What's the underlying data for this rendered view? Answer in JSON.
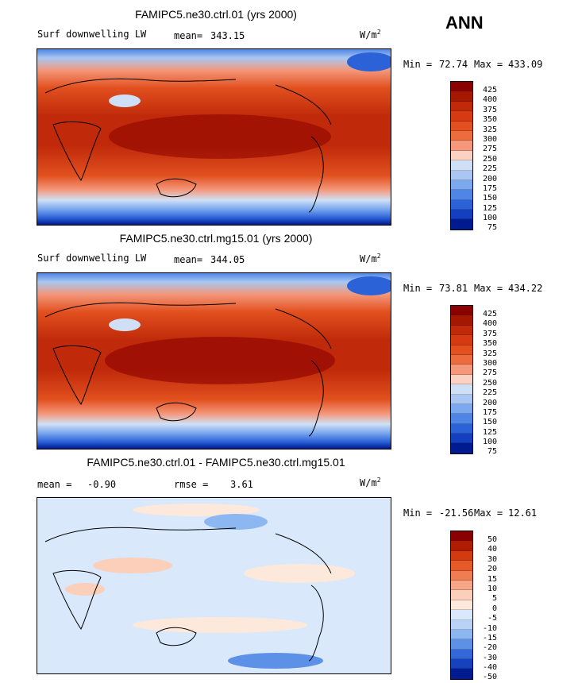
{
  "season": "ANN",
  "units_base": "W/m",
  "units_exp": "2",
  "panels": [
    {
      "title": "FAMIPC5.ne30.ctrl.01 (yrs 2000)",
      "variable": "Surf downwelling LW",
      "stat_label": "mean=",
      "stat_value": "343.15",
      "min_label": "Min =",
      "min_value": "72.74",
      "max_label": "Max =",
      "max_value": "433.09",
      "levels": [
        "425",
        "400",
        "375",
        "350",
        "325",
        "300",
        "275",
        "250",
        "225",
        "200",
        "175",
        "150",
        "125",
        "100",
        "75"
      ]
    },
    {
      "title": "FAMIPC5.ne30.ctrl.mg15.01 (yrs 2000)",
      "variable": "Surf downwelling LW",
      "stat_label": "mean=",
      "stat_value": "344.05",
      "min_label": "Min =",
      "min_value": "73.81",
      "max_label": "Max =",
      "max_value": "434.22",
      "levels": [
        "425",
        "400",
        "375",
        "350",
        "325",
        "300",
        "275",
        "250",
        "225",
        "200",
        "175",
        "150",
        "125",
        "100",
        "75"
      ]
    },
    {
      "title": "FAMIPC5.ne30.ctrl.01 - FAMIPC5.ne30.ctrl.mg15.01",
      "mean_label": "mean =",
      "mean_value": "-0.90",
      "rmse_label": "rmse =",
      "rmse_value": "3.61",
      "min_label": "Min =",
      "min_value": "-21.56",
      "max_label": "Max =",
      "max_value": "12.61",
      "levels": [
        "50",
        "40",
        "30",
        "20",
        "15",
        "10",
        "5",
        "0",
        "-5",
        "-10",
        "-15",
        "-20",
        "-30",
        "-40",
        "-50"
      ]
    }
  ],
  "colors": {
    "abs_scale": [
      "#8b0000",
      "#a51800",
      "#c02a0a",
      "#d63a12",
      "#e2501f",
      "#ec6c3e",
      "#f4977a",
      "#fbd2c2",
      "#cfe0f6",
      "#a9c7f2",
      "#7ba8ee",
      "#4f86e6",
      "#2c62d8",
      "#1440c0",
      "#001a8f"
    ],
    "diff_scale": [
      "#8b0000",
      "#b01c00",
      "#d23a10",
      "#e65a2a",
      "#ef7d51",
      "#f6a687",
      "#fbcfb9",
      "#fde9dc",
      "#d9e8fa",
      "#b8d3f6",
      "#8db7f1",
      "#5d91e8",
      "#3468d8",
      "#1642bd",
      "#001a8f"
    ]
  }
}
